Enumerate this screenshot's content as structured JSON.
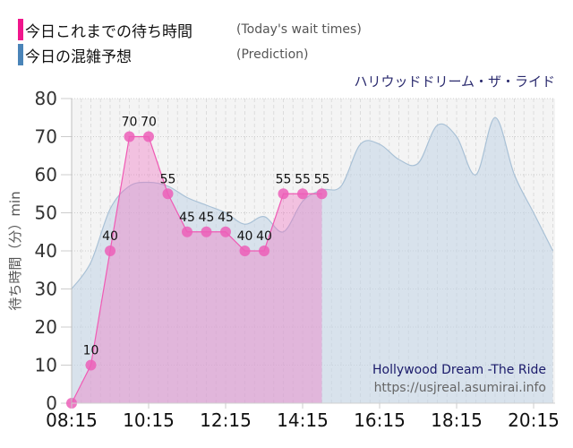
{
  "legend": [
    {
      "label_jp": "今日これまでの待ち時間",
      "label_en": "(Today's wait times)",
      "color": "#f0168c"
    },
    {
      "label_jp": "今日の混雑予想",
      "label_en": "(Prediction)",
      "color": "#4a84b8"
    }
  ],
  "chart_title": "ハリウッドドリーム・ザ・ライド",
  "watermark": {
    "line1": "Hollywood Dream -The Ride",
    "line2": "https://usjreal.asumirai.info"
  },
  "chart_data": {
    "type": "area",
    "title": "ハリウッドドリーム・ザ・ライド",
    "xlabel": "",
    "ylabel": "待ち時間（分）min",
    "ylim": [
      0,
      80
    ],
    "yticks": [
      0,
      10,
      20,
      30,
      40,
      50,
      60,
      70,
      80
    ],
    "xticks": [
      "08:15",
      "10:15",
      "12:15",
      "14:15",
      "16:15",
      "18:15",
      "20:15"
    ],
    "grid": true,
    "legend_position": "top-left",
    "series": [
      {
        "name": "今日これまでの待ち時間 (Today's wait times)",
        "color": "#f0168c",
        "show_labels": true,
        "x": [
          "08:15",
          "08:45",
          "09:15",
          "09:45",
          "10:15",
          "10:45",
          "11:15",
          "11:45",
          "12:15",
          "12:45",
          "13:15",
          "13:45",
          "14:15",
          "14:45"
        ],
        "values": [
          0,
          10,
          40,
          70,
          70,
          55,
          45,
          45,
          45,
          40,
          40,
          55,
          55,
          55
        ]
      },
      {
        "name": "今日の混雑予想 (Prediction)",
        "color": "#4a84b8",
        "show_labels": false,
        "x": [
          "08:15",
          "08:45",
          "09:15",
          "09:45",
          "10:15",
          "10:45",
          "11:15",
          "11:45",
          "12:15",
          "12:45",
          "13:15",
          "13:45",
          "14:15",
          "14:45",
          "15:15",
          "15:45",
          "16:15",
          "16:45",
          "17:15",
          "17:45",
          "18:15",
          "18:45",
          "19:15",
          "19:45",
          "20:15",
          "20:45"
        ],
        "values": [
          30,
          37,
          51,
          57,
          58,
          57,
          54,
          52,
          50,
          47,
          49,
          45,
          53,
          56,
          57,
          68,
          68,
          64,
          63,
          73,
          70,
          60,
          75,
          60,
          50,
          40
        ]
      }
    ]
  }
}
